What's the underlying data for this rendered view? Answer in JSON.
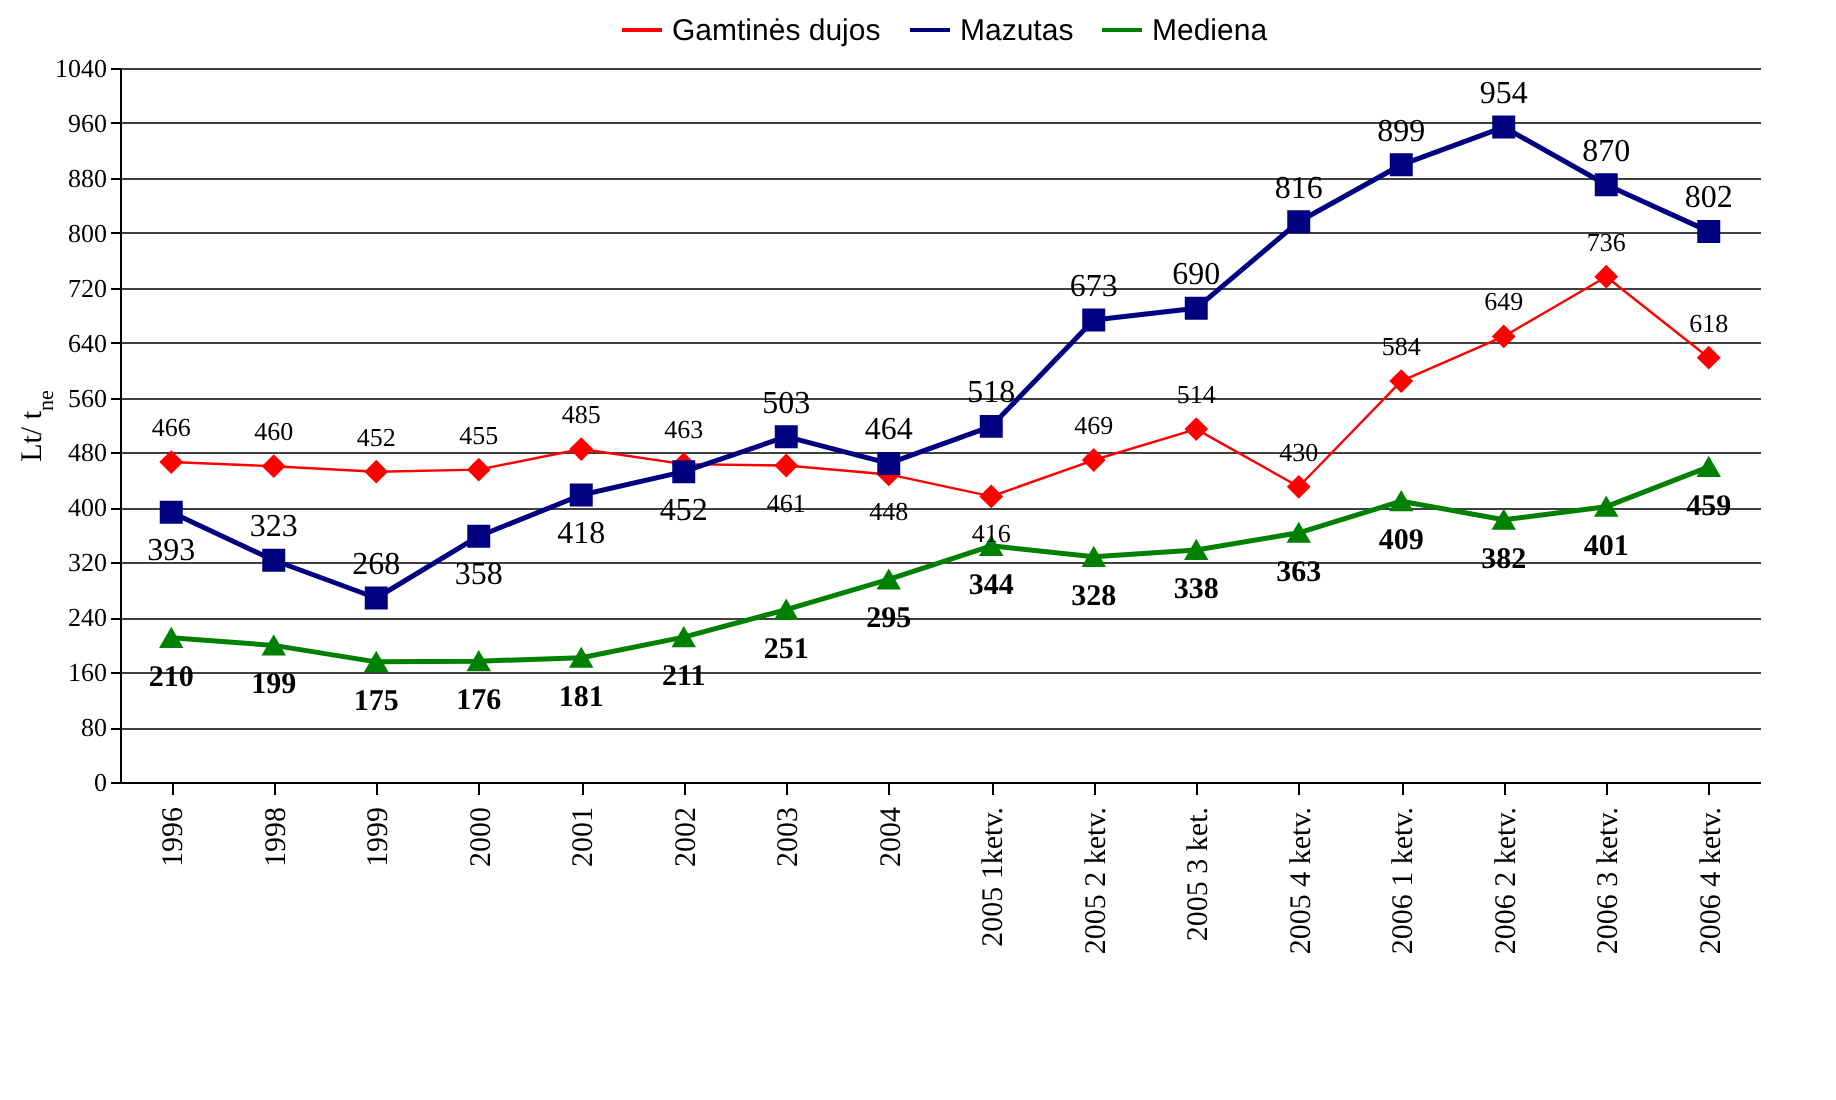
{
  "chart_data": {
    "type": "line",
    "ylabel": "Lt/ t$_{ne}$",
    "categories": [
      "1996",
      "1998",
      "1999",
      "2000",
      "2001",
      "2002",
      "2003",
      "2004",
      "2005 1ketv.",
      "2005  2 ketv.",
      "2005  3 ket.",
      "2005  4 ketv.",
      "2006  1 ketv.",
      "2006  2 ketv.",
      "2006  3 ketv.",
      "2006  4 ketv."
    ],
    "series": [
      {
        "name": "Gamtinės dujos",
        "color": "#ff0000",
        "marker": "diamond",
        "values": [
          466,
          460,
          452,
          455,
          485,
          463,
          461,
          448,
          416,
          469,
          514,
          430,
          584,
          649,
          736,
          618
        ]
      },
      {
        "name": "Mazutas",
        "color": "#000080",
        "marker": "square",
        "values": [
          393,
          323,
          268,
          358,
          418,
          452,
          503,
          464,
          518,
          673,
          690,
          816,
          899,
          954,
          870,
          802
        ]
      },
      {
        "name": "Mediena",
        "color": "#008000",
        "marker": "triangle",
        "values": [
          210,
          199,
          175,
          176,
          181,
          211,
          251,
          295,
          344,
          328,
          338,
          363,
          409,
          382,
          401,
          459
        ]
      }
    ],
    "ylim": [
      0,
      1040
    ],
    "yticks": [
      0,
      80,
      160,
      240,
      320,
      400,
      480,
      560,
      640,
      720,
      800,
      880,
      960,
      1040
    ],
    "grid": "y",
    "legend": "top",
    "data_labels": true
  }
}
